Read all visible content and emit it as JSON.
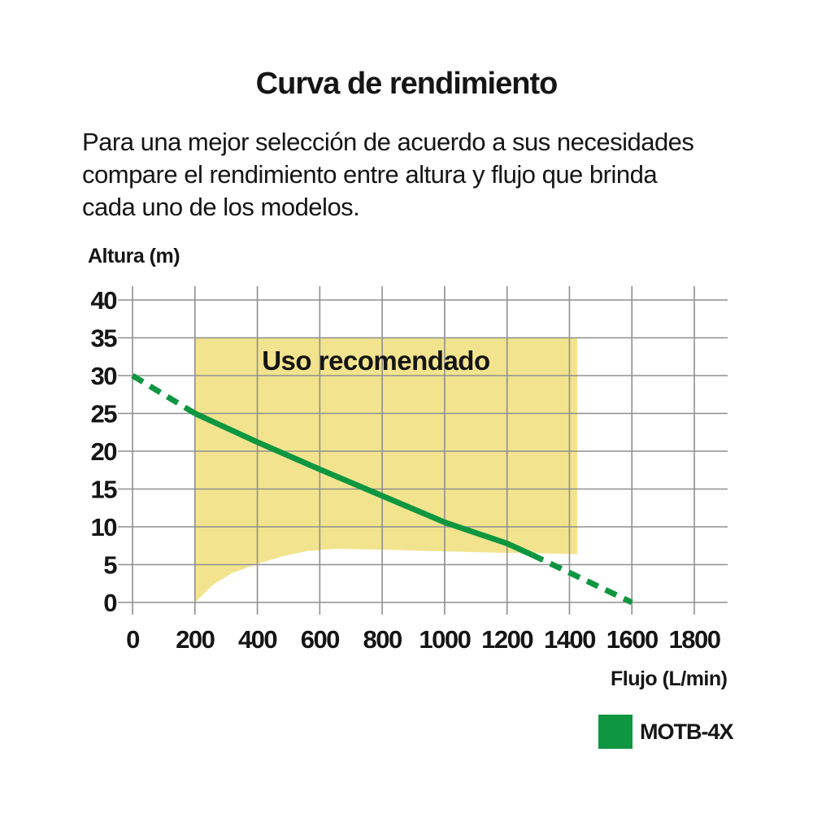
{
  "title": "Curva de rendimiento",
  "description_lines": [
    "Para una mejor selección de acuerdo a sus necesidades",
    "compare el rendimiento entre altura y flujo que brinda",
    "cada uno de los modelos."
  ],
  "colors": {
    "curve_green": "#0e9640",
    "region_yellow": "#f2e48f",
    "grid_gray": "#8f8f8f",
    "text": "#151515"
  },
  "chart_data": {
    "type": "line",
    "xlabel": "Flujo (L/min)",
    "ylabel": "Altura (m)",
    "xlim": [
      0,
      1800
    ],
    "ylim": [
      0,
      40
    ],
    "xticks": [
      0,
      200,
      400,
      600,
      800,
      1000,
      1200,
      1400,
      1600,
      1800
    ],
    "yticks": [
      0,
      5,
      10,
      15,
      20,
      25,
      30,
      35,
      40
    ],
    "grid": true,
    "recommended_region": {
      "label": "Uso recomendado",
      "label_x": 780,
      "label_y": 30.75,
      "x_min": 200,
      "x_max": 1425,
      "y_top": 35,
      "bottom_boundary": [
        [
          200,
          0
        ],
        [
          260,
          2.4
        ],
        [
          320,
          3.9
        ],
        [
          400,
          5.1
        ],
        [
          480,
          6.1
        ],
        [
          560,
          6.8
        ],
        [
          650,
          7.1
        ],
        [
          780,
          7.0
        ],
        [
          950,
          6.8
        ],
        [
          1150,
          6.6
        ],
        [
          1300,
          6.5
        ],
        [
          1425,
          6.4
        ]
      ]
    },
    "series": [
      {
        "name": "MOTB-4X",
        "color": "#0e9640",
        "segments": [
          {
            "style": "dashed",
            "points": [
              [
                0,
                30
              ],
              [
                200,
                25
              ]
            ]
          },
          {
            "style": "solid",
            "points": [
              [
                200,
                25
              ],
              [
                400,
                21.2
              ],
              [
                600,
                17.6
              ],
              [
                800,
                14.1
              ],
              [
                1000,
                10.6
              ],
              [
                1200,
                7.8
              ],
              [
                1280,
                6.3
              ]
            ]
          },
          {
            "style": "dashed",
            "points": [
              [
                1280,
                6.3
              ],
              [
                1600,
                0
              ]
            ]
          }
        ]
      }
    ],
    "legend": [
      {
        "label": "MOTB-4X",
        "color": "#0e9640"
      }
    ]
  }
}
